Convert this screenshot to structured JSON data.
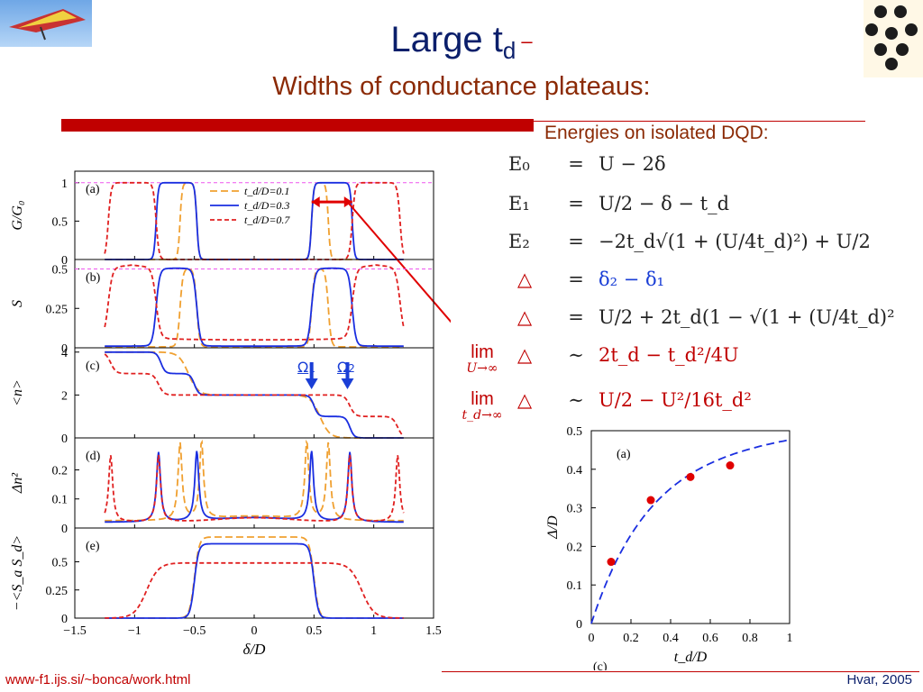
{
  "slide": {
    "title_main": "Large t",
    "title_sub": "d",
    "title_dash": "–",
    "subtitle": "Widths of conductance plateaus:",
    "energies_heading": "Energies on isolated DQD:",
    "footer_url": "www-f1.ijs.si/~bonca/work.html",
    "footer_date": "Hvar, 2005",
    "omega1": "Ω",
    "omega1_sub": "1",
    "omega2": "Ω",
    "omega2_sub": "2"
  },
  "equations": [
    {
      "lhs": "E₀",
      "rel": "=",
      "rhs": "U − 2δ"
    },
    {
      "lhs": "E₁",
      "rel": "=",
      "rhs": "U/2 − δ − t_d"
    },
    {
      "lhs": "E₂",
      "rel": "=",
      "rhs": "−2t_d√(1 + (U/4t_d)²) + U/2"
    },
    {
      "lhs": "△",
      "rel": "=",
      "rhs": "δ₂ − δ₁"
    },
    {
      "lhs": "△",
      "rel": "=",
      "rhs": "U/2 + 2t_d(1 − √(1 + (U/4t_d)²"
    }
  ],
  "limits": [
    {
      "lim": "lim",
      "under": "U→∞",
      "lhs": "△",
      "rel": "∼",
      "rhs": "2t_d − t_d²/4U"
    },
    {
      "lim": "lim",
      "under": "t_d→∞",
      "lhs": "△",
      "rel": "∼",
      "rhs": "U/2 − U²/16t_d²"
    }
  ],
  "colors": {
    "orange": "#f0a030",
    "blue": "#1a2ee0",
    "red": "#e02020",
    "magenta": "#ee55ee",
    "title_blue": "#0b1f6b",
    "title_red": "#8b2a05"
  },
  "chart_data": [
    {
      "type": "line",
      "panel": "(a)",
      "ylabel": "G/G₀",
      "yticks": [
        "0",
        "0.5",
        "1"
      ],
      "ylim": [
        0,
        1.15
      ],
      "xlim": [
        -1.5,
        1.5
      ],
      "legend": [
        "t_d/D=0.1",
        "t_d/D=0.3",
        "t_d/D=0.7"
      ],
      "series": [
        {
          "name": "t_d/D=0.1",
          "color": "orange",
          "plateaus": [
            {
              "x0": -0.62,
              "x1": -0.48,
              "y": 1
            },
            {
              "x0": 0.48,
              "x1": 0.62,
              "y": 1
            }
          ],
          "width": 0.009
        },
        {
          "name": "t_d/D=0.3",
          "color": "blue",
          "plateaus": [
            {
              "x0": -0.82,
              "x1": -0.48,
              "y": 1
            },
            {
              "x0": 0.48,
              "x1": 0.82,
              "y": 1
            }
          ],
          "width": 0.009
        },
        {
          "name": "t_d/D=0.7",
          "color": "red",
          "plateaus": [
            {
              "x0": -1.22,
              "x1": -0.82,
              "y": 1
            },
            {
              "x0": 0.82,
              "x1": 1.22,
              "y": 1
            }
          ],
          "width": 0.012
        }
      ],
      "refline": 1
    },
    {
      "type": "line",
      "panel": "(b)",
      "ylabel": "S",
      "yticks": [
        "0",
        "0.25",
        "0.5"
      ],
      "ylim": [
        0,
        0.56
      ],
      "xlim": [
        -1.5,
        1.5
      ],
      "series": [
        {
          "name": "t_d/D=0.1",
          "color": "orange",
          "plateaus": [
            {
              "x0": -0.62,
              "x1": -0.48,
              "y": 0.5
            },
            {
              "x0": 0.48,
              "x1": 0.62,
              "y": 0.5
            }
          ],
          "width": 0.012,
          "base": 0.005
        },
        {
          "name": "t_d/D=0.3",
          "color": "blue",
          "plateaus": [
            {
              "x0": -0.82,
              "x1": -0.48,
              "y": 0.5
            },
            {
              "x0": 0.48,
              "x1": 0.82,
              "y": 0.5
            }
          ],
          "width": 0.015,
          "base": 0.01
        },
        {
          "name": "t_d/D=0.7",
          "color": "red",
          "plateaus": [
            {
              "x0": -1.22,
              "x1": -0.82,
              "y": 0.5
            },
            {
              "x0": 0.82,
              "x1": 1.22,
              "y": 0.5
            }
          ],
          "width": 0.018,
          "base": 0.05
        }
      ],
      "refline": 0.5
    },
    {
      "type": "line",
      "panel": "(c)",
      "ylabel": "<n>",
      "yticks": [
        "0",
        "2",
        "4"
      ],
      "ylim": [
        0,
        4.2
      ],
      "xlim": [
        -1.5,
        1.5
      ],
      "series": [
        {
          "name": "t_d/D=0.1",
          "color": "orange",
          "steps": [
            {
              "x": -0.55,
              "d": 2
            },
            {
              "x": 0.55,
              "d": 2
            }
          ],
          "start": 4,
          "width": 0.04
        },
        {
          "name": "t_d/D=0.3",
          "color": "blue",
          "steps": [
            {
              "x": -0.78,
              "d": 1
            },
            {
              "x": -0.5,
              "d": 1
            },
            {
              "x": 0.5,
              "d": 1
            },
            {
              "x": 0.8,
              "d": 1
            }
          ],
          "start": 4,
          "width": 0.018
        },
        {
          "name": "t_d/D=0.7",
          "color": "red",
          "steps": [
            {
              "x": -1.2,
              "d": 1
            },
            {
              "x": -0.8,
              "d": 1
            },
            {
              "x": 0.8,
              "d": 1
            },
            {
              "x": 1.2,
              "d": 1
            }
          ],
          "start": 4,
          "width": 0.022
        }
      ]
    },
    {
      "type": "line",
      "panel": "(d)",
      "ylabel": "Δn²",
      "yticks": [
        "0",
        "0.1",
        "0.2"
      ],
      "ylim": [
        0,
        0.31
      ],
      "xlim": [
        -1.5,
        1.5
      ],
      "series": [
        {
          "name": "t_d/D=0.1",
          "color": "orange",
          "peaks": [
            -0.62,
            -0.44,
            0.44,
            0.62
          ],
          "height": 0.29,
          "gamma": 0.02,
          "base": 0.025
        },
        {
          "name": "t_d/D=0.3",
          "color": "blue",
          "peaks": [
            -0.8,
            -0.48,
            0.48,
            0.8
          ],
          "height": 0.26,
          "gamma": 0.02,
          "base": 0.02
        },
        {
          "name": "t_d/D=0.7",
          "color": "red",
          "peaks": [
            -1.2,
            -0.8,
            0.8,
            1.2
          ],
          "height": 0.25,
          "gamma": 0.02,
          "base": 0.02
        }
      ]
    },
    {
      "type": "line",
      "panel": "(e)",
      "ylabel": "−<S_a S_d>",
      "yticks": [
        "0",
        "0.25",
        "0.5"
      ],
      "ylim": [
        0,
        0.8
      ],
      "xlim": [
        -1.5,
        1.5
      ],
      "xlabel": "δ/D",
      "xticks": [
        "−1.5",
        "−1",
        "−0.5",
        "0",
        "0.5",
        "1",
        "1.5"
      ],
      "series": [
        {
          "name": "t_d/D=0.1",
          "color": "orange",
          "plateaus": [
            {
              "x0": -0.5,
              "x1": 0.5,
              "y": 0.72
            }
          ],
          "width": 0.02,
          "base": 0
        },
        {
          "name": "t_d/D=0.3",
          "color": "blue",
          "plateaus": [
            {
              "x0": -0.5,
              "x1": 0.5,
              "y": 0.66
            }
          ],
          "width": 0.018,
          "base": 0
        },
        {
          "name": "t_d/D=0.7",
          "color": "red",
          "plateaus": [
            {
              "x0": -0.9,
              "x1": 0.9,
              "y": 0.49
            }
          ],
          "width": 0.05,
          "base": 0
        }
      ]
    },
    {
      "type": "scatter",
      "panel": "(a)",
      "caption": "(c)",
      "xlabel": "t_d/D",
      "ylabel": "Δ/D",
      "xlim": [
        0,
        1
      ],
      "ylim": [
        0,
        0.5
      ],
      "xticks": [
        "0",
        "0.2",
        "0.4",
        "0.6",
        "0.8",
        "1"
      ],
      "yticks": [
        "0",
        "0.1",
        "0.2",
        "0.3",
        "0.4",
        "0.5"
      ],
      "points": [
        {
          "x": 0.1,
          "y": 0.16
        },
        {
          "x": 0.3,
          "y": 0.32
        },
        {
          "x": 0.5,
          "y": 0.38
        },
        {
          "x": 0.7,
          "y": 0.41
        }
      ],
      "fit": "dashed blue curve"
    }
  ]
}
